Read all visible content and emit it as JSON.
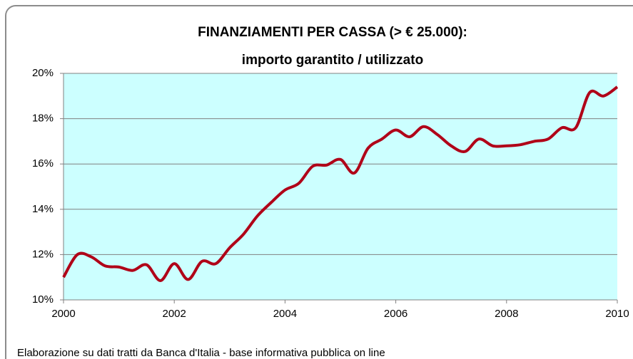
{
  "chart_data": {
    "type": "line",
    "title": [
      "FINANZIAMENTI PER CASSA (> € 25.000):",
      "importo garantito  / utilizzato"
    ],
    "note": "Elaborazione su dati tratti da  Banca d'Italia - base informativa pubblica on line",
    "x": [
      2000,
      2000.25,
      2000.5,
      2000.75,
      2001,
      2001.25,
      2001.5,
      2001.75,
      2002,
      2002.25,
      2002.5,
      2002.75,
      2003,
      2003.25,
      2003.5,
      2003.75,
      2004,
      2004.25,
      2004.5,
      2004.75,
      2005,
      2005.25,
      2005.5,
      2005.75,
      2006,
      2006.25,
      2006.5,
      2006.75,
      2007,
      2007.25,
      2007.5,
      2007.75,
      2008,
      2008.25,
      2008.5,
      2008.75,
      2009,
      2009.25,
      2009.5,
      2009.75,
      2010
    ],
    "series": [
      {
        "color": "#b00018",
        "values": [
          11.0,
          12.0,
          11.9,
          11.5,
          11.45,
          11.3,
          11.55,
          10.85,
          11.6,
          10.9,
          11.7,
          11.6,
          12.3,
          12.9,
          13.7,
          14.3,
          14.85,
          15.15,
          15.9,
          15.95,
          16.2,
          15.6,
          16.7,
          17.1,
          17.5,
          17.2,
          17.65,
          17.3,
          16.8,
          16.55,
          17.1,
          16.8,
          16.8,
          16.85,
          17.0,
          17.1,
          17.6,
          17.6,
          19.15,
          19.0,
          19.4
        ]
      }
    ],
    "xlim": [
      2000,
      2010
    ],
    "xticks": [
      2000,
      2002,
      2004,
      2006,
      2008,
      2010
    ],
    "ylim": [
      10,
      20
    ],
    "yticks": [
      {
        "value": 10,
        "label": "10%"
      },
      {
        "value": 12,
        "label": "12%"
      },
      {
        "value": 14,
        "label": "14%"
      },
      {
        "value": 16,
        "label": "16%"
      },
      {
        "value": 18,
        "label": "18%"
      },
      {
        "value": 20,
        "label": "20%"
      }
    ],
    "grid": true,
    "plot_background": "#ccffff"
  }
}
